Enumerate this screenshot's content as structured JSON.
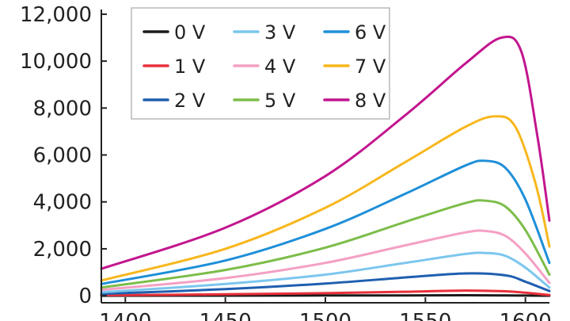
{
  "chart_data": {
    "type": "line",
    "title": "",
    "xlabel": "",
    "ylabel": "",
    "xlim": [
      1388,
      1612
    ],
    "ylim": [
      -300,
      12200
    ],
    "xticks": [
      1400,
      1450,
      1500,
      1550,
      1600
    ],
    "yticks": [
      0,
      2000,
      4000,
      6000,
      8000,
      10000,
      12000
    ],
    "xtick_labels": [
      "1400",
      "1450",
      "1500",
      "1550",
      "1600"
    ],
    "ytick_labels": [
      "0",
      "2,000",
      "4,000",
      "6,000",
      "8,000",
      "10,000",
      "12,000"
    ],
    "grid": false,
    "legend_position": "top-left",
    "legend_columns": 3,
    "series": [
      {
        "name": "0 V",
        "color": "#1a1a1a",
        "x": [
          1388,
          1450,
          1500,
          1540,
          1570,
          1590,
          1600,
          1612
        ],
        "y": [
          0,
          5,
          10,
          15,
          20,
          15,
          8,
          0
        ]
      },
      {
        "name": "1 V",
        "color": "#e8303a",
        "x": [
          1388,
          1450,
          1500,
          1540,
          1570,
          1590,
          1600,
          1612
        ],
        "y": [
          20,
          60,
          110,
          170,
          220,
          190,
          130,
          30
        ]
      },
      {
        "name": "2 V",
        "color": "#1f5fb0",
        "x": [
          1388,
          1450,
          1500,
          1540,
          1570,
          1590,
          1600,
          1612
        ],
        "y": [
          80,
          280,
          520,
          780,
          950,
          870,
          600,
          200
        ]
      },
      {
        "name": "3 V",
        "color": "#7cc6ee",
        "x": [
          1388,
          1450,
          1500,
          1540,
          1570,
          1580,
          1590,
          1600,
          1612
        ],
        "y": [
          150,
          500,
          900,
          1400,
          1780,
          1820,
          1700,
          1200,
          350
        ]
      },
      {
        "name": "4 V",
        "color": "#f4a0c4",
        "x": [
          1388,
          1450,
          1500,
          1540,
          1570,
          1580,
          1590,
          1600,
          1612
        ],
        "y": [
          250,
          750,
          1400,
          2150,
          2700,
          2760,
          2550,
          1800,
          550
        ]
      },
      {
        "name": "5 V",
        "color": "#7cbd4a",
        "x": [
          1388,
          1450,
          1500,
          1540,
          1570,
          1580,
          1590,
          1600,
          1612
        ],
        "y": [
          350,
          1100,
          2050,
          3150,
          3950,
          4050,
          3800,
          2800,
          900
        ]
      },
      {
        "name": "6 V",
        "color": "#1e8fd8",
        "x": [
          1388,
          1450,
          1500,
          1540,
          1570,
          1580,
          1590,
          1600,
          1612
        ],
        "y": [
          500,
          1500,
          2850,
          4350,
          5550,
          5750,
          5450,
          4100,
          1400
        ]
      },
      {
        "name": "7 V",
        "color": "#f7b71d",
        "x": [
          1388,
          1450,
          1500,
          1540,
          1570,
          1585,
          1595,
          1605,
          1612
        ],
        "y": [
          650,
          2000,
          3750,
          5700,
          7200,
          7650,
          7200,
          4800,
          2100
        ]
      },
      {
        "name": "8 V",
        "color": "#c2168f",
        "x": [
          1388,
          1450,
          1500,
          1540,
          1570,
          1588,
          1598,
          1606,
          1612
        ],
        "y": [
          1150,
          2900,
          5100,
          7700,
          9900,
          11000,
          10400,
          6800,
          3200
        ]
      }
    ]
  }
}
